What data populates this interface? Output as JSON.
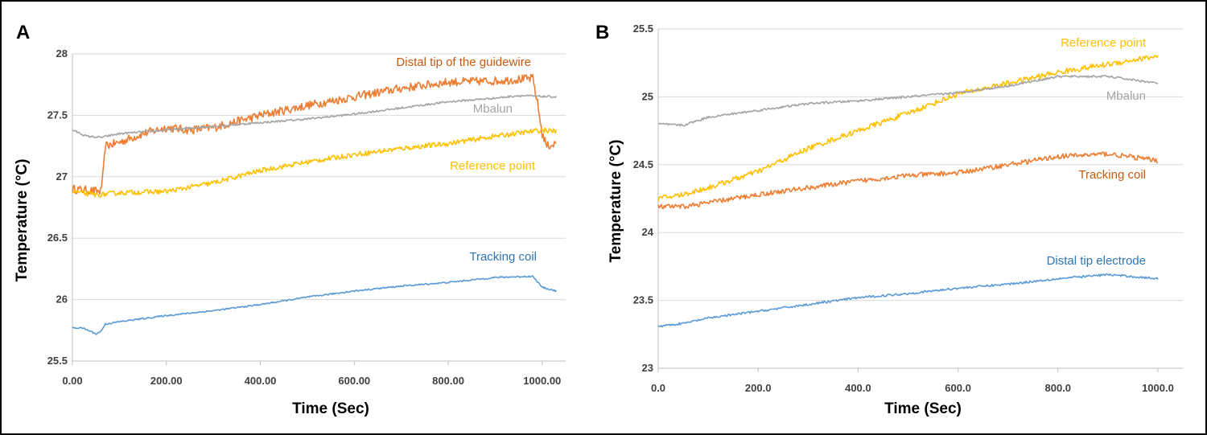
{
  "chart_data": [
    {
      "type": "line",
      "panel_label": "A",
      "xlabel": "Time (Sec)",
      "ylabel": "Temperature (°C)",
      "xlim": [
        0,
        1050
      ],
      "ylim": [
        25.5,
        28
      ],
      "x_ticks": [
        0,
        200,
        400,
        600,
        800,
        1000
      ],
      "x_tick_labels": [
        "0.00",
        "200.00",
        "400.00",
        "600.00",
        "800.00",
        "1000.00"
      ],
      "y_ticks": [
        25.5,
        26,
        26.5,
        27,
        27.5,
        28
      ],
      "y_tick_labels": [
        "25.5",
        "26",
        "26.5",
        "27",
        "27.5",
        "28"
      ],
      "grid": true,
      "series": [
        {
          "name": "Distal tip of the guidewire",
          "color": "#ED7D31",
          "noise": 0.035,
          "points": [
            [
              0,
              26.9
            ],
            [
              60,
              26.88
            ],
            [
              65,
              27.0
            ],
            [
              70,
              27.25
            ],
            [
              100,
              27.28
            ],
            [
              150,
              27.35
            ],
            [
              200,
              27.4
            ],
            [
              250,
              27.38
            ],
            [
              300,
              27.4
            ],
            [
              350,
              27.45
            ],
            [
              400,
              27.5
            ],
            [
              500,
              27.58
            ],
            [
              600,
              27.65
            ],
            [
              700,
              27.72
            ],
            [
              800,
              27.77
            ],
            [
              900,
              27.78
            ],
            [
              980,
              27.8
            ],
            [
              990,
              27.6
            ],
            [
              1000,
              27.35
            ],
            [
              1010,
              27.25
            ],
            [
              1030,
              27.27
            ]
          ]
        },
        {
          "name": "Mbalun",
          "color": "#A5A5A5",
          "noise": 0.008,
          "points": [
            [
              0,
              27.38
            ],
            [
              30,
              27.33
            ],
            [
              60,
              27.32
            ],
            [
              100,
              27.35
            ],
            [
              200,
              27.38
            ],
            [
              300,
              27.41
            ],
            [
              400,
              27.44
            ],
            [
              500,
              27.47
            ],
            [
              600,
              27.51
            ],
            [
              700,
              27.56
            ],
            [
              800,
              27.61
            ],
            [
              900,
              27.64
            ],
            [
              950,
              27.66
            ],
            [
              1030,
              27.65
            ]
          ]
        },
        {
          "name": "Reference point",
          "color": "#FFC000",
          "noise": 0.02,
          "points": [
            [
              0,
              26.88
            ],
            [
              50,
              26.85
            ],
            [
              100,
              26.87
            ],
            [
              200,
              26.88
            ],
            [
              300,
              26.95
            ],
            [
              400,
              27.05
            ],
            [
              500,
              27.12
            ],
            [
              600,
              27.18
            ],
            [
              700,
              27.23
            ],
            [
              800,
              27.27
            ],
            [
              900,
              27.33
            ],
            [
              1000,
              27.38
            ],
            [
              1030,
              27.37
            ]
          ]
        },
        {
          "name": "Tracking coil",
          "color": "#5B9BD5",
          "noise": 0.006,
          "points": [
            [
              0,
              25.77
            ],
            [
              20,
              25.77
            ],
            [
              40,
              25.74
            ],
            [
              50,
              25.72
            ],
            [
              60,
              25.74
            ],
            [
              70,
              25.8
            ],
            [
              100,
              25.82
            ],
            [
              200,
              25.87
            ],
            [
              300,
              25.91
            ],
            [
              400,
              25.96
            ],
            [
              500,
              26.02
            ],
            [
              600,
              26.07
            ],
            [
              700,
              26.11
            ],
            [
              800,
              26.14
            ],
            [
              900,
              26.18
            ],
            [
              980,
              26.19
            ],
            [
              1000,
              26.1
            ],
            [
              1030,
              26.07
            ]
          ]
        }
      ]
    },
    {
      "type": "line",
      "panel_label": "B",
      "xlabel": "Time (Sec)",
      "ylabel": "Temperature (°C)",
      "xlim": [
        0,
        1050
      ],
      "ylim": [
        23,
        25.5
      ],
      "x_ticks": [
        0,
        200,
        400,
        600,
        800,
        1000
      ],
      "x_tick_labels": [
        "0.0",
        "200.0",
        "400.0",
        "600.0",
        "800.0",
        "1000.0"
      ],
      "y_ticks": [
        23,
        23.5,
        24,
        24.5,
        25,
        25.5
      ],
      "y_tick_labels": [
        "23",
        "23.5",
        "24",
        "24.5",
        "25",
        "25.5"
      ],
      "grid": true,
      "series": [
        {
          "name": "Reference point",
          "color": "#FFC000",
          "noise": 0.02,
          "points": [
            [
              0,
              24.25
            ],
            [
              50,
              24.28
            ],
            [
              100,
              24.33
            ],
            [
              200,
              24.45
            ],
            [
              300,
              24.62
            ],
            [
              400,
              24.75
            ],
            [
              500,
              24.88
            ],
            [
              600,
              25.02
            ],
            [
              700,
              25.1
            ],
            [
              800,
              25.18
            ],
            [
              900,
              25.24
            ],
            [
              1000,
              25.3
            ]
          ]
        },
        {
          "name": "Mbalun",
          "color": "#A5A5A5",
          "noise": 0.008,
          "points": [
            [
              0,
              24.8
            ],
            [
              50,
              24.79
            ],
            [
              100,
              24.85
            ],
            [
              200,
              24.9
            ],
            [
              300,
              24.95
            ],
            [
              400,
              24.97
            ],
            [
              500,
              25.0
            ],
            [
              600,
              25.03
            ],
            [
              700,
              25.08
            ],
            [
              800,
              25.15
            ],
            [
              900,
              25.15
            ],
            [
              1000,
              25.1
            ]
          ]
        },
        {
          "name": "Tracking coil",
          "color": "#ED7D31",
          "noise": 0.018,
          "points": [
            [
              0,
              24.19
            ],
            [
              50,
              24.19
            ],
            [
              100,
              24.22
            ],
            [
              200,
              24.28
            ],
            [
              300,
              24.33
            ],
            [
              400,
              24.38
            ],
            [
              500,
              24.42
            ],
            [
              600,
              24.44
            ],
            [
              700,
              24.5
            ],
            [
              800,
              24.56
            ],
            [
              900,
              24.58
            ],
            [
              1000,
              24.53
            ]
          ]
        },
        {
          "name": "Distal tip electrode",
          "color": "#5B9BD5",
          "noise": 0.008,
          "points": [
            [
              0,
              23.31
            ],
            [
              50,
              23.33
            ],
            [
              100,
              23.37
            ],
            [
              200,
              23.42
            ],
            [
              300,
              23.47
            ],
            [
              400,
              23.52
            ],
            [
              500,
              23.55
            ],
            [
              600,
              23.59
            ],
            [
              700,
              23.62
            ],
            [
              800,
              23.66
            ],
            [
              900,
              23.69
            ],
            [
              1000,
              23.66
            ]
          ]
        }
      ]
    }
  ]
}
